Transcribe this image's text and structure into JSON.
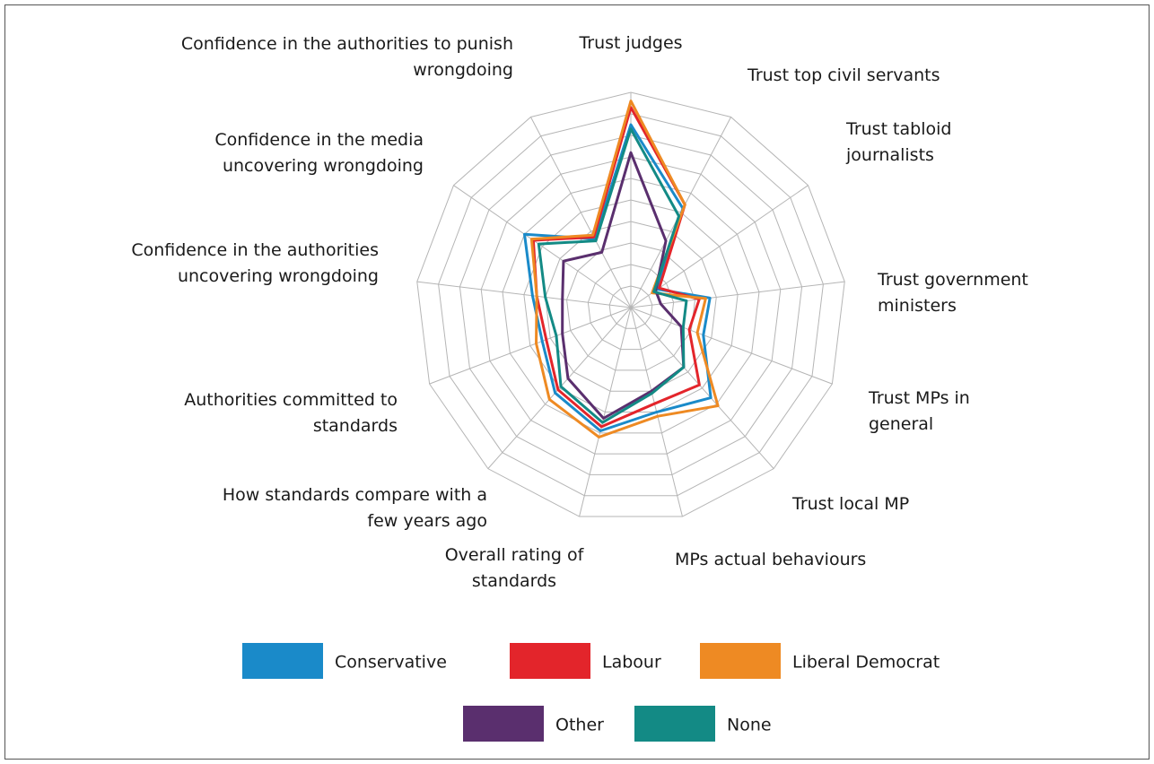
{
  "chart_data": {
    "type": "radar",
    "categories": [
      "Trust judges",
      "Trust top civil servants",
      "Trust tabloid journalists",
      "Trust government ministers",
      "Trust MPs in general",
      "Trust local MP",
      "MPs actual behaviours",
      "Overall rating of standards",
      "How standards compare with a few years ago",
      "Authorities committed to standards",
      "Confidence in the authorities uncovering wrongdoing",
      "Confidence in the media uncovering wrongdoing",
      "Confidence in the authorities to punish wrongdoing"
    ],
    "series": [
      {
        "name": "Conservative",
        "color": "#1a8ac9",
        "values": [
          85,
          52,
          15,
          37,
          36,
          56,
          50,
          59,
          53,
          44,
          46,
          60,
          36
        ]
      },
      {
        "name": "Labour",
        "color": "#e3252b",
        "values": [
          93,
          54,
          16,
          32,
          29,
          48,
          46,
          57,
          51,
          42,
          44,
          55,
          37
        ]
      },
      {
        "name": "Liberal Democrat",
        "color": "#ee8a23",
        "values": [
          96,
          54,
          12,
          35,
          33,
          61,
          52,
          62,
          57,
          47,
          44,
          56,
          38
        ]
      },
      {
        "name": "Other",
        "color": "#5a2f6e",
        "values": [
          72,
          35,
          14,
          14,
          25,
          37,
          40,
          53,
          44,
          34,
          32,
          38,
          29
        ]
      },
      {
        "name": "None",
        "color": "#138a85",
        "values": [
          83,
          48,
          13,
          26,
          26,
          37,
          41,
          55,
          49,
          37,
          40,
          52,
          35
        ]
      }
    ],
    "ylim": [
      0,
      100
    ],
    "yticks": [
      0,
      10,
      20,
      30,
      40,
      50,
      60,
      70,
      80,
      90,
      100
    ],
    "grid": true
  }
}
